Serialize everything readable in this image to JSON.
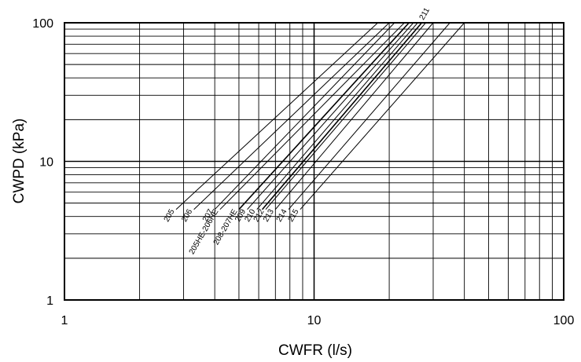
{
  "chart_data": {
    "type": "line",
    "title": "",
    "xlabel": "CWFR (l/s)",
    "ylabel": "CWPD (kPa)",
    "x_scale": "log",
    "y_scale": "log",
    "xlim": [
      1,
      100
    ],
    "ylim": [
      1,
      100
    ],
    "x_ticks": [
      "1",
      "10",
      "100"
    ],
    "y_ticks": [
      "1",
      "10",
      "100"
    ],
    "grid": true,
    "legend": "none",
    "series": [
      {
        "name": "205",
        "x": [
          2.8,
          18.0
        ],
        "y": [
          4.5,
          100
        ]
      },
      {
        "name": "206",
        "x": [
          3.3,
          20.0
        ],
        "y": [
          4.5,
          100
        ]
      },
      {
        "name": "207",
        "x": [
          4.0,
          21.0
        ],
        "y": [
          4.5,
          100
        ]
      },
      {
        "name": "205HE-206HE",
        "x": [
          4.2,
          23.0
        ],
        "y": [
          4.5,
          100
        ]
      },
      {
        "name": "208-207HE",
        "x": [
          5.0,
          24.0
        ],
        "y": [
          4.5,
          100
        ]
      },
      {
        "name": "209",
        "x": [
          5.4,
          25.0
        ],
        "y": [
          4.5,
          100
        ]
      },
      {
        "name": "210",
        "x": [
          5.9,
          26.0
        ],
        "y": [
          4.5,
          100
        ]
      },
      {
        "name": "211",
        "x": [
          6.2,
          27.0
        ],
        "y": [
          4.5,
          100
        ]
      },
      {
        "name": "212",
        "x": [
          6.4,
          28.0
        ],
        "y": [
          4.5,
          100
        ]
      },
      {
        "name": "213",
        "x": [
          7.0,
          30.0
        ],
        "y": [
          4.5,
          100
        ]
      },
      {
        "name": "214",
        "x": [
          7.9,
          35.0
        ],
        "y": [
          4.5,
          100
        ]
      },
      {
        "name": "215",
        "x": [
          8.8,
          40.0
        ],
        "y": [
          4.5,
          100
        ]
      }
    ]
  }
}
